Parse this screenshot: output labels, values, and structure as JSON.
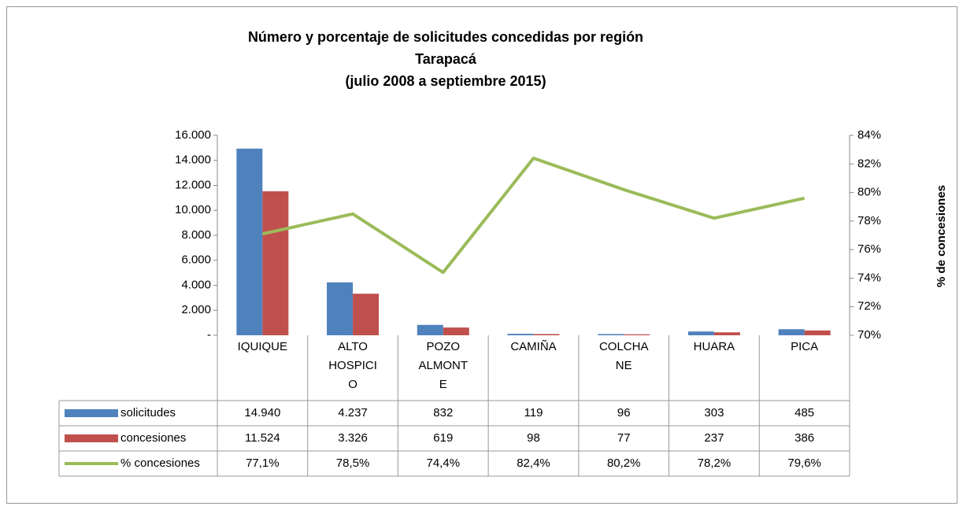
{
  "chart_data": {
    "type": "bar_line_table",
    "title": [
      "Número y porcentaje de solicitudes concedidas por región",
      "Tarapacá",
      "(julio 2008 a septiembre 2015)"
    ],
    "y2_label": "% de concesiones",
    "categories": [
      "IQUIQUE",
      "ALTO HOSPICIO",
      "POZO ALMONTE",
      "CAMIÑA",
      "COLCHANE",
      "HUARA",
      "PICA"
    ],
    "series": [
      {
        "name": "solicitudes",
        "color": "#4f81bd",
        "type": "bar",
        "values": [
          14940,
          4237,
          832,
          119,
          96,
          303,
          485
        ],
        "value_labels": [
          "14.940",
          "4.237",
          "832",
          "119",
          "96",
          "303",
          "485"
        ]
      },
      {
        "name": "concesiones",
        "color": "#c0504d",
        "type": "bar",
        "values": [
          11524,
          3326,
          619,
          98,
          77,
          237,
          386
        ],
        "value_labels": [
          "11.524",
          "3.326",
          "619",
          "98",
          "77",
          "237",
          "386"
        ]
      },
      {
        "name": "% concesiones",
        "color": "#9bbb59",
        "type": "line",
        "axis": "y2",
        "values": [
          77.1,
          78.5,
          74.4,
          82.4,
          80.2,
          78.2,
          79.6
        ],
        "value_labels": [
          "77,1%",
          "78,5%",
          "74,4%",
          "82,4%",
          "80,2%",
          "78,2%",
          "79,6%"
        ]
      }
    ],
    "ylim": [
      0,
      16000
    ],
    "yticks": [
      {
        "value": 0,
        "label": "-"
      },
      {
        "value": 2000,
        "label": "2.000"
      },
      {
        "value": 4000,
        "label": "4.000"
      },
      {
        "value": 6000,
        "label": "6.000"
      },
      {
        "value": 8000,
        "label": "8.000"
      },
      {
        "value": 10000,
        "label": "10.000"
      },
      {
        "value": 12000,
        "label": "12.000"
      },
      {
        "value": 14000,
        "label": "14.000"
      },
      {
        "value": 16000,
        "label": "16.000"
      }
    ],
    "y2lim": [
      70,
      84
    ],
    "y2ticks": [
      {
        "value": 70,
        "label": "70%"
      },
      {
        "value": 72,
        "label": "72%"
      },
      {
        "value": 74,
        "label": "74%"
      },
      {
        "value": 76,
        "label": "76%"
      },
      {
        "value": 78,
        "label": "78%"
      },
      {
        "value": 80,
        "label": "80%"
      },
      {
        "value": 82,
        "label": "82%"
      },
      {
        "value": 84,
        "label": "84%"
      }
    ]
  }
}
